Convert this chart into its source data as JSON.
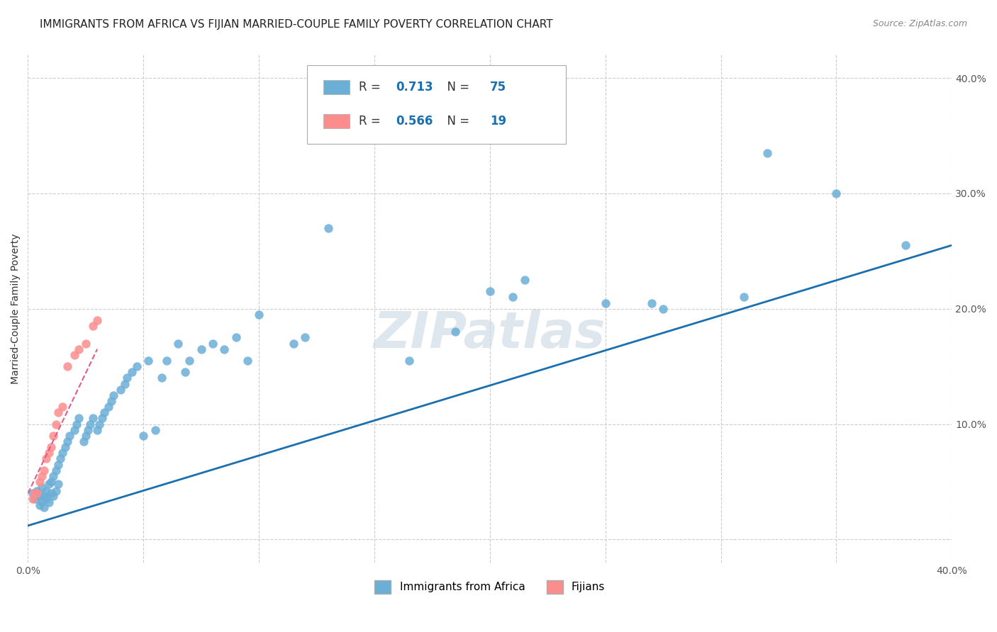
{
  "title": "IMMIGRANTS FROM AFRICA VS FIJIAN MARRIED-COUPLE FAMILY POVERTY CORRELATION CHART",
  "source": "Source: ZipAtlas.com",
  "ylabel": "Married-Couple Family Poverty",
  "xlim": [
    0.0,
    0.4
  ],
  "ylim": [
    -0.02,
    0.42
  ],
  "xticks": [
    0.0,
    0.05,
    0.1,
    0.15,
    0.2,
    0.25,
    0.3,
    0.35,
    0.4
  ],
  "yticks": [
    0.0,
    0.1,
    0.2,
    0.3,
    0.4
  ],
  "xticklabels": [
    "0.0%",
    "",
    "",
    "",
    "",
    "",
    "",
    "",
    "40.0%"
  ],
  "right_yticklabels": [
    "",
    "10.0%",
    "20.0%",
    "30.0%",
    "40.0%"
  ],
  "blue_scatter_x": [
    0.002,
    0.003,
    0.004,
    0.005,
    0.005,
    0.006,
    0.006,
    0.007,
    0.007,
    0.008,
    0.008,
    0.009,
    0.009,
    0.01,
    0.01,
    0.011,
    0.011,
    0.012,
    0.012,
    0.013,
    0.013,
    0.014,
    0.015,
    0.016,
    0.017,
    0.018,
    0.02,
    0.021,
    0.022,
    0.024,
    0.025,
    0.026,
    0.027,
    0.028,
    0.03,
    0.031,
    0.032,
    0.033,
    0.035,
    0.036,
    0.037,
    0.04,
    0.042,
    0.043,
    0.045,
    0.047,
    0.05,
    0.052,
    0.055,
    0.058,
    0.06,
    0.065,
    0.068,
    0.07,
    0.075,
    0.08,
    0.085,
    0.09,
    0.095,
    0.1,
    0.115,
    0.12,
    0.13,
    0.165,
    0.185,
    0.2,
    0.21,
    0.215,
    0.25,
    0.27,
    0.275,
    0.31,
    0.32,
    0.35,
    0.38
  ],
  "blue_scatter_y": [
    0.04,
    0.035,
    0.042,
    0.038,
    0.03,
    0.045,
    0.033,
    0.038,
    0.028,
    0.042,
    0.035,
    0.048,
    0.032,
    0.05,
    0.04,
    0.055,
    0.038,
    0.06,
    0.042,
    0.065,
    0.048,
    0.07,
    0.075,
    0.08,
    0.085,
    0.09,
    0.095,
    0.1,
    0.105,
    0.085,
    0.09,
    0.095,
    0.1,
    0.105,
    0.095,
    0.1,
    0.105,
    0.11,
    0.115,
    0.12,
    0.125,
    0.13,
    0.135,
    0.14,
    0.145,
    0.15,
    0.09,
    0.155,
    0.095,
    0.14,
    0.155,
    0.17,
    0.145,
    0.155,
    0.165,
    0.17,
    0.165,
    0.175,
    0.155,
    0.195,
    0.17,
    0.175,
    0.27,
    0.155,
    0.18,
    0.215,
    0.21,
    0.225,
    0.205,
    0.205,
    0.2,
    0.21,
    0.335,
    0.3,
    0.255
  ],
  "pink_scatter_x": [
    0.002,
    0.003,
    0.004,
    0.005,
    0.006,
    0.007,
    0.008,
    0.009,
    0.01,
    0.011,
    0.012,
    0.013,
    0.015,
    0.017,
    0.02,
    0.022,
    0.025,
    0.028,
    0.03
  ],
  "pink_scatter_y": [
    0.035,
    0.04,
    0.04,
    0.05,
    0.055,
    0.06,
    0.07,
    0.075,
    0.08,
    0.09,
    0.1,
    0.11,
    0.115,
    0.15,
    0.16,
    0.165,
    0.17,
    0.185,
    0.19
  ],
  "blue_line_x": [
    0.0,
    0.4
  ],
  "blue_line_y": [
    0.012,
    0.255
  ],
  "pink_line_x": [
    0.0,
    0.03
  ],
  "pink_line_y": [
    0.04,
    0.165
  ],
  "scatter_color_blue": "#6baed6",
  "scatter_color_pink": "#fc8d8d",
  "line_color_blue": "#1a6faf",
  "line_color_pink": "#e05c8a",
  "grid_color": "#cccccc",
  "watermark": "ZIPatlas",
  "background_color": "#ffffff",
  "title_fontsize": 11,
  "axis_label_fontsize": 10,
  "tick_fontsize": 10,
  "legend_r1_val": "0.713",
  "legend_r1_n": "75",
  "legend_r2_val": "0.566",
  "legend_r2_n": "19",
  "legend_color_r": "#1a6faf",
  "legend_color_n": "#1a6faf"
}
